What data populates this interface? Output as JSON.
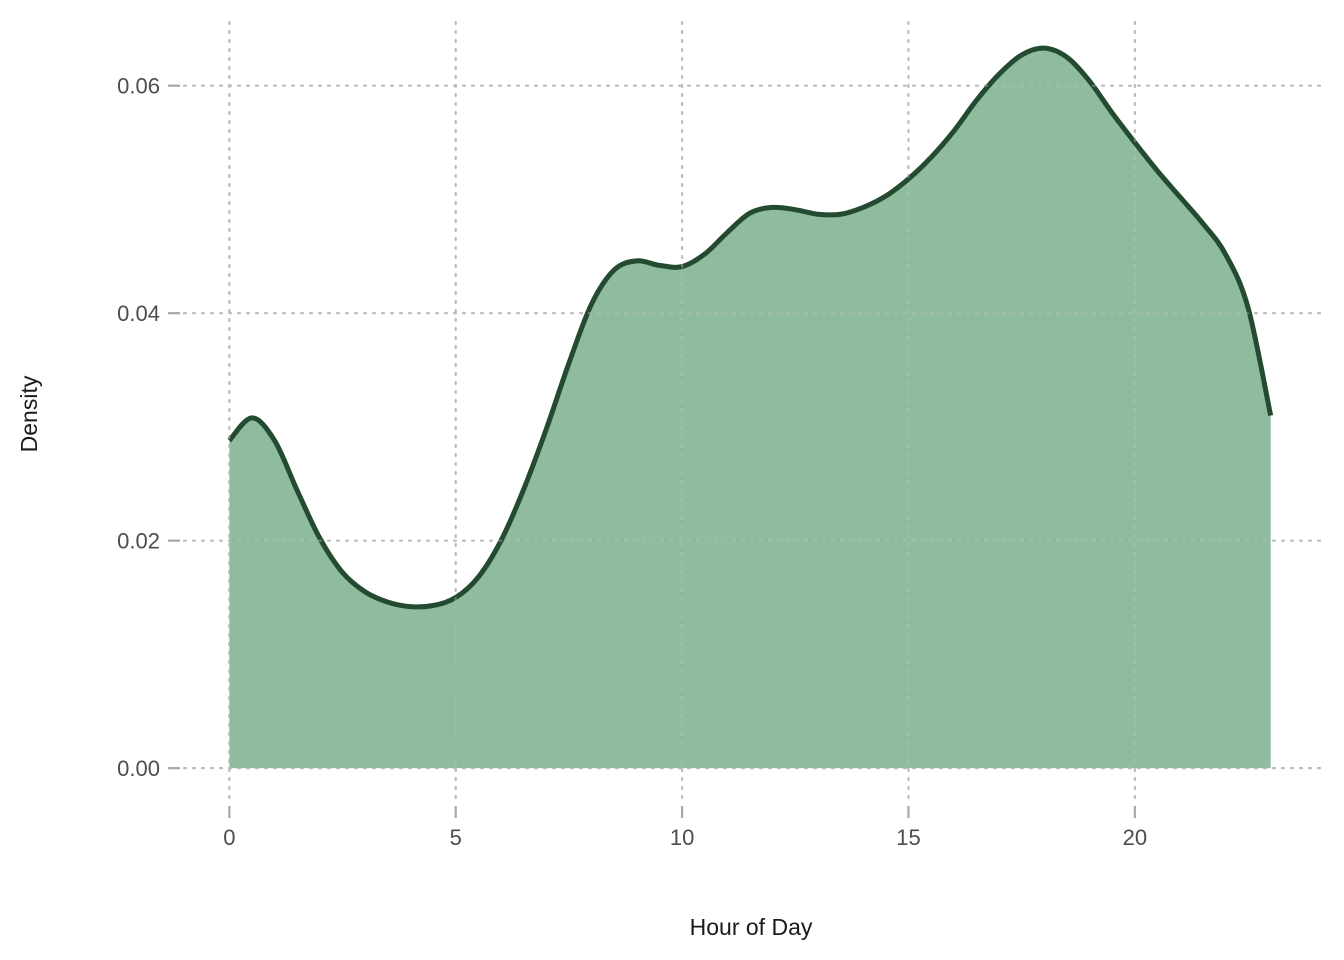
{
  "chart_data": {
    "type": "area",
    "title": "",
    "xlabel": "Hour of Day",
    "ylabel": "Density",
    "xlim": [
      -1.2,
      24.2
    ],
    "ylim": [
      -0.0028,
      0.0656
    ],
    "x_ticks": [
      0,
      5,
      10,
      15,
      20
    ],
    "x_tick_labels": [
      "0",
      "5",
      "10",
      "15",
      "20"
    ],
    "y_ticks": [
      0.0,
      0.02,
      0.04,
      0.06
    ],
    "y_tick_labels": [
      "0.00",
      "0.02",
      "0.04",
      "0.06"
    ],
    "grid": true,
    "grid_style": "dotted",
    "legend": "none",
    "fill_color": "#8fbc9e",
    "line_color": "#244a30",
    "series": [
      {
        "x": [
          0,
          0.5,
          1,
          1.5,
          2,
          2.5,
          3,
          3.5,
          4,
          4.5,
          5,
          5.5,
          6,
          6.5,
          7,
          7.5,
          8,
          8.5,
          9,
          9.5,
          10,
          10.5,
          11,
          11.5,
          12,
          12.5,
          13,
          13.5,
          14,
          14.5,
          15,
          15.5,
          16,
          16.5,
          17,
          17.5,
          18,
          18.5,
          19,
          19.5,
          20,
          20.5,
          21,
          21.5,
          22,
          22.5,
          23
        ],
        "y": [
          0.0288,
          0.0308,
          0.0288,
          0.0244,
          0.0202,
          0.0172,
          0.0155,
          0.0146,
          0.0142,
          0.0143,
          0.015,
          0.0168,
          0.02,
          0.0245,
          0.0298,
          0.0356,
          0.0408,
          0.0438,
          0.0446,
          0.0442,
          0.0441,
          0.0452,
          0.0471,
          0.0488,
          0.0493,
          0.0491,
          0.0487,
          0.0487,
          0.0493,
          0.0503,
          0.0518,
          0.0537,
          0.056,
          0.0587,
          0.061,
          0.0627,
          0.0633,
          0.0625,
          0.0604,
          0.0576,
          0.055,
          0.0525,
          0.0502,
          0.0479,
          0.0452,
          0.0405,
          0.031
        ]
      }
    ]
  }
}
